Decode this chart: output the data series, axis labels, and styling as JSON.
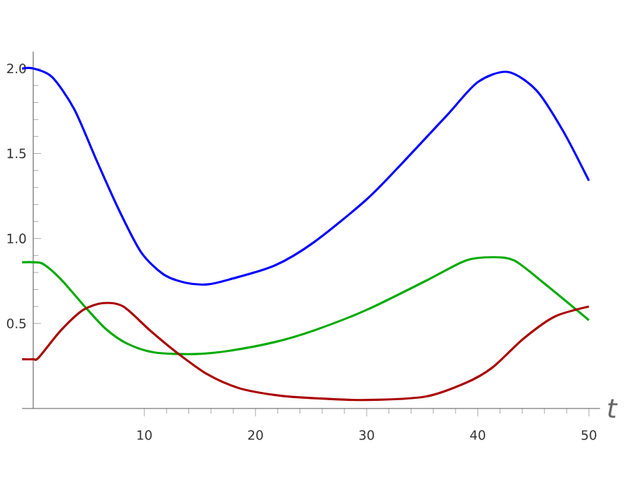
{
  "chart_data": {
    "type": "line",
    "xlabel": "t",
    "xlim": [
      -1,
      51
    ],
    "ylim": [
      0,
      2.1
    ],
    "xticks": [
      10,
      20,
      30,
      40,
      50
    ],
    "yticks": [
      0.5,
      {
        "value": 1,
        "label": "1.0"
      },
      1.5,
      {
        "value": 2,
        "label": "2.0"
      }
    ],
    "grid": false,
    "marker": "none",
    "line_style": "solid",
    "series": [
      {
        "color": "#0000ff",
        "x": [
          -1,
          0,
          1.7,
          3.7,
          5.7,
          7.7,
          9.7,
          11.7,
          13.7,
          15.7,
          17.7,
          21.7,
          25.3,
          30,
          33.3,
          37.3,
          40,
          42.7,
          45.3,
          47.7,
          50
        ],
        "values": [
          2.0,
          2.0,
          1.95,
          1.76,
          1.46,
          1.17,
          0.92,
          0.79,
          0.74,
          0.73,
          0.76,
          0.84,
          0.98,
          1.23,
          1.45,
          1.73,
          1.92,
          1.98,
          1.87,
          1.63,
          1.34
        ]
      },
      {
        "color": "#00aa00",
        "x": [
          -1,
          0,
          0.9,
          2.5,
          4.5,
          6.5,
          8.5,
          10.9,
          14.5,
          17.7,
          21.7,
          25.3,
          30,
          35.3,
          38.9,
          41.3,
          43.3,
          46.1,
          50
        ],
        "values": [
          0.86,
          0.86,
          0.85,
          0.76,
          0.61,
          0.47,
          0.38,
          0.33,
          0.32,
          0.34,
          0.39,
          0.46,
          0.58,
          0.75,
          0.87,
          0.89,
          0.87,
          0.73,
          0.52
        ]
      },
      {
        "color": "#aa0000",
        "x": [
          -1,
          0,
          0.5,
          2.5,
          4.5,
          6.3,
          8.1,
          10.5,
          12.9,
          15.7,
          18.5,
          21.7,
          25.3,
          30,
          35.3,
          38.9,
          41.3,
          44.1,
          46.9,
          50
        ],
        "values": [
          0.29,
          0.29,
          0.3,
          0.46,
          0.58,
          0.62,
          0.6,
          0.46,
          0.33,
          0.2,
          0.12,
          0.08,
          0.06,
          0.05,
          0.07,
          0.15,
          0.24,
          0.41,
          0.54,
          0.6
        ]
      }
    ]
  }
}
